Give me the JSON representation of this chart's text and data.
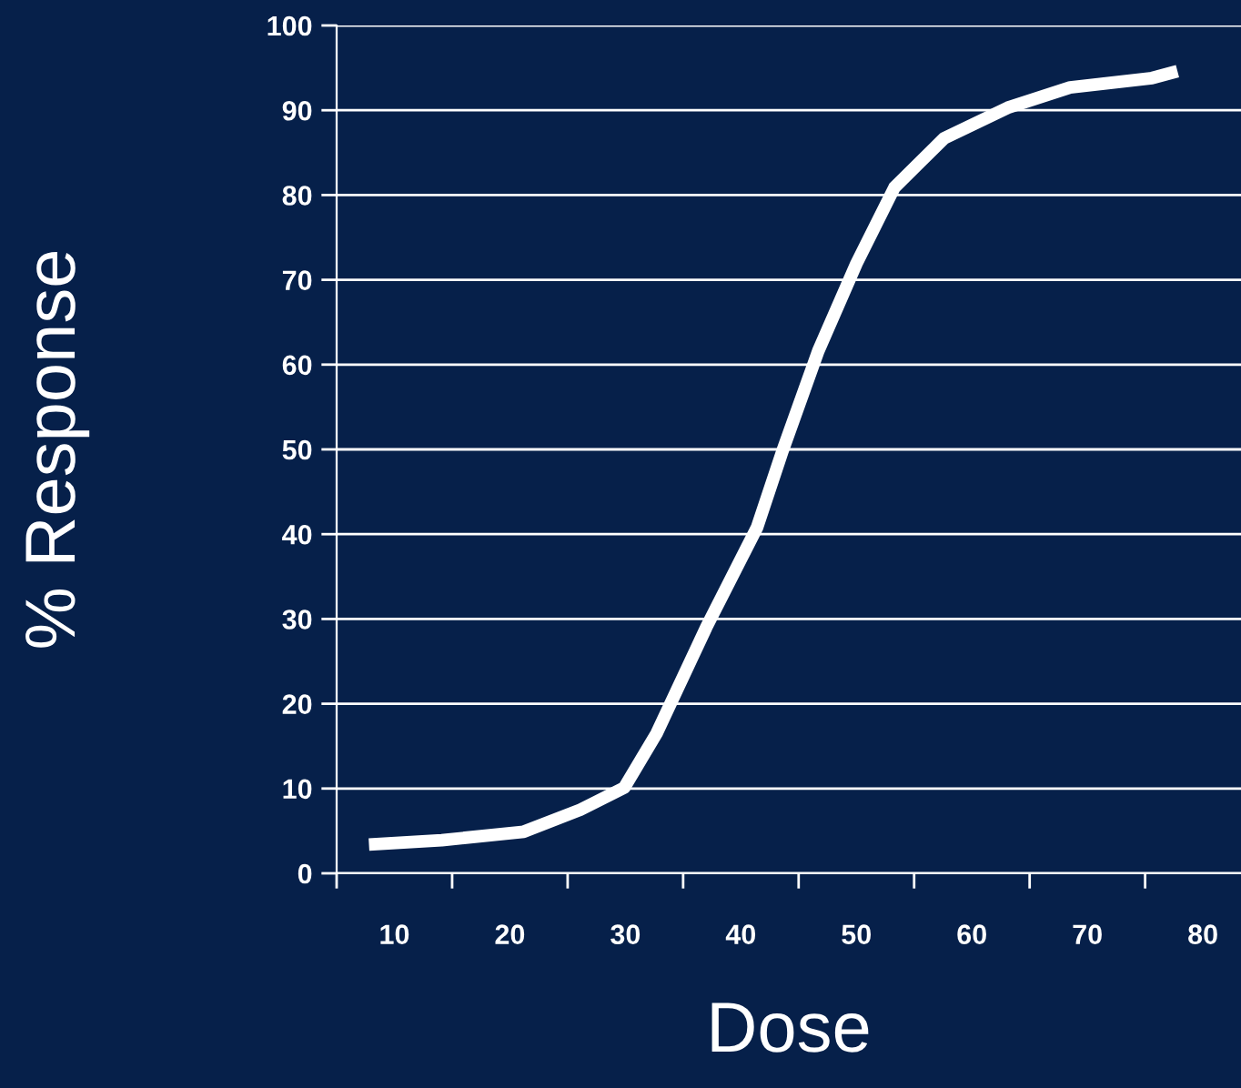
{
  "chart_data": {
    "type": "line",
    "xlabel": "Dose",
    "ylabel": "% Response",
    "x": [
      7.8,
      14.1,
      21.2,
      26.1,
      29.9,
      32.7,
      37,
      41.4,
      43.6,
      46.7,
      50,
      53.3,
      57.6,
      63.1,
      68.5,
      75.6,
      77.8
    ],
    "series": [
      {
        "color": "#ffffff",
        "values": [
          3.4,
          3.9,
          4.9,
          7.5,
          10.1,
          16.5,
          29,
          40.8,
          49.8,
          61.6,
          71.9,
          80.9,
          86.7,
          90.3,
          92.7,
          93.8,
          94.6
        ]
      }
    ],
    "xlim": [
      5,
      83.3
    ],
    "xticks": [
      {
        "value": 5,
        "label": null
      },
      10,
      {
        "value": 15,
        "label": null
      },
      20,
      {
        "value": 25,
        "label": null
      },
      30,
      {
        "value": 35,
        "label": null
      },
      40,
      {
        "value": 45,
        "label": null
      },
      50,
      {
        "value": 55,
        "label": null
      },
      60,
      {
        "value": 65,
        "label": null
      },
      70,
      {
        "value": 75,
        "label": null
      },
      80
    ],
    "ylim": [
      0,
      100
    ],
    "yticks": [
      0,
      10,
      20,
      30,
      40,
      50,
      60,
      70,
      80,
      90,
      100
    ],
    "grid": "y",
    "marker": "none",
    "line_style": "solid",
    "legend": false
  }
}
